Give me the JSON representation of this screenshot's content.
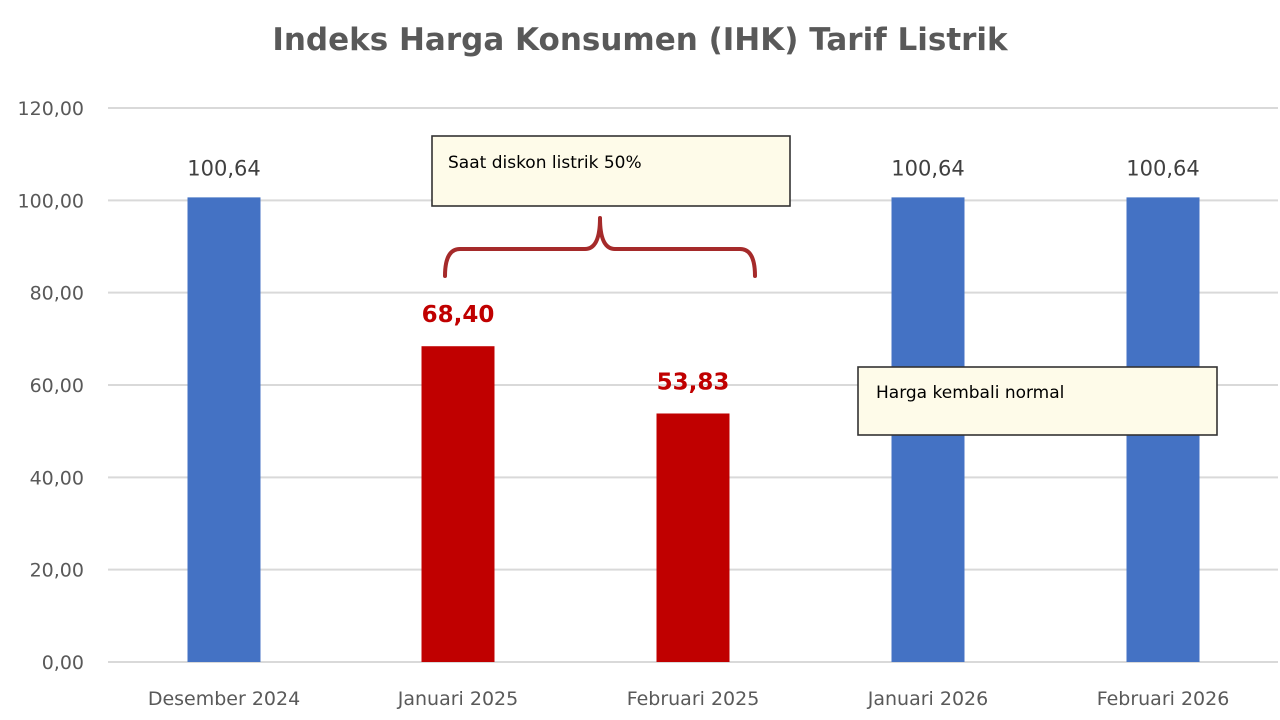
{
  "chart_data": {
    "type": "bar",
    "title": "Indeks Harga Konsumen (IHK) Tarif Listrik",
    "xlabel": "",
    "ylabel": "",
    "categories": [
      "Desember 2024",
      "Januari 2025",
      "Februari 2025",
      "Januari 2026",
      "Februari 2026"
    ],
    "values": [
      100.64,
      68.4,
      53.83,
      100.64,
      100.64
    ],
    "value_labels": [
      "100,64",
      "68,40",
      "53,83",
      "100,64",
      "100,64"
    ],
    "highlight": [
      false,
      true,
      true,
      false,
      false
    ],
    "ylim": [
      0,
      120
    ],
    "yticks": [
      0,
      20,
      40,
      60,
      80,
      100,
      120
    ],
    "ytick_labels": [
      "0,00",
      "20,00",
      "40,00",
      "60,00",
      "80,00",
      "100,00",
      "120,00"
    ],
    "grid": true,
    "legend": "none",
    "colors": {
      "normal": "#4472c4",
      "highlight": "#c00000",
      "grid": "#d9d9d9",
      "bracket": "#a52a2a"
    },
    "annotations": [
      {
        "id": "discount-note",
        "text": "Saat diskon listrik 50%"
      },
      {
        "id": "normal-note",
        "text": "Harga kembali normal"
      }
    ]
  }
}
